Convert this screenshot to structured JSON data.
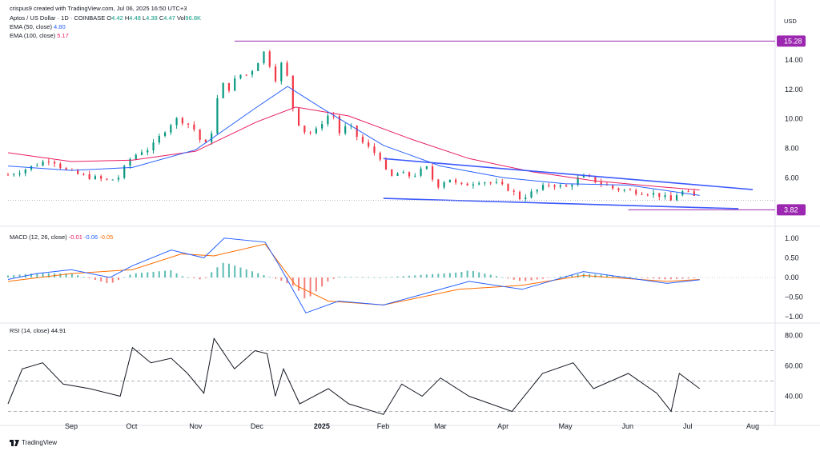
{
  "header": {
    "creator": "crispus9 created with TradingView.com, Jul 06, 2025 16:50 UTC+3",
    "symbol": "Aptos / US Dollar · 1D · COINBASE",
    "o_label": "O",
    "o": "4.42",
    "h_label": "H",
    "h": "4.48",
    "l_label": "L",
    "l": "4.38",
    "c_label": "C",
    "c": "4.47",
    "vol_label": "Vol",
    "vol": "96.8K",
    "ema50_label": "EMA (50, close)",
    "ema50": "4.80",
    "ema100_label": "EMA (100, close)",
    "ema100": "5.17",
    "currency": "USD"
  },
  "macd": {
    "label": "MACD (12, 26, close)",
    "hist": "-0.01",
    "macd": "-0.06",
    "signal": "-0.05"
  },
  "rsi": {
    "label": "RSI (14, close)",
    "value": "44.91"
  },
  "branding": "TradingView",
  "colors": {
    "up": "#089981",
    "down": "#f23645",
    "ema50": "#2962ff",
    "ema100": "#e91e63",
    "trend": "#3d5afe",
    "level": "#9c27b0",
    "signal": "#ff6d00",
    "rsi": "#131722"
  },
  "chart_data": [
    {
      "type": "candlestick",
      "title": "Aptos / US Dollar · 1D · COINBASE",
      "ylabel": "USD",
      "ylim": [
        3.3,
        15.9
      ],
      "y_ticks": [
        "14.00",
        "12.00",
        "10.00",
        "8.00",
        "6.00"
      ],
      "x_ticks": [
        "Sep",
        "Oct",
        "Nov",
        "Dec",
        "2025",
        "Feb",
        "Mar",
        "Apr",
        "May",
        "Jun",
        "Jul",
        "Aug"
      ],
      "x_tick_dates": [
        "2024-09-01",
        "2024-10-01",
        "2024-11-01",
        "2024-12-01",
        "2025-01-01",
        "2025-02-01",
        "2025-03-01",
        "2025-04-01",
        "2025-05-01",
        "2025-06-01",
        "2025-07-01",
        "2025-08-01"
      ],
      "x_range": [
        "2024-08-01",
        "2025-08-12"
      ],
      "price_points": [
        [
          "2024-08-01",
          6.2
        ],
        [
          "2024-08-08",
          6.5
        ],
        [
          "2024-08-15",
          6.9
        ],
        [
          "2024-08-22",
          7.3
        ],
        [
          "2024-08-29",
          6.5
        ],
        [
          "2024-09-05",
          6.2
        ],
        [
          "2024-09-12",
          6.0
        ],
        [
          "2024-09-19",
          5.8
        ],
        [
          "2024-09-24",
          6.0
        ],
        [
          "2024-09-30",
          7.3
        ],
        [
          "2024-10-05",
          7.8
        ],
        [
          "2024-10-10",
          8.0
        ],
        [
          "2024-10-16",
          9.1
        ],
        [
          "2024-10-22",
          10.0
        ],
        [
          "2024-10-27",
          9.8
        ],
        [
          "2024-11-01",
          9.2
        ],
        [
          "2024-11-05",
          8.0
        ],
        [
          "2024-11-09",
          9.2
        ],
        [
          "2024-11-13",
          12.5
        ],
        [
          "2024-11-17",
          12.0
        ],
        [
          "2024-11-22",
          13.0
        ],
        [
          "2024-11-27",
          13.0
        ],
        [
          "2024-12-03",
          14.2
        ],
        [
          "2024-12-06",
          14.9
        ],
        [
          "2024-12-09",
          12.0
        ],
        [
          "2024-12-12",
          14.0
        ],
        [
          "2024-12-16",
          12.8
        ],
        [
          "2024-12-19",
          10.5
        ],
        [
          "2024-12-23",
          9.2
        ],
        [
          "2024-12-29",
          9.0
        ],
        [
          "2025-01-03",
          10.0
        ],
        [
          "2025-01-07",
          10.5
        ],
        [
          "2025-01-10",
          9.0
        ],
        [
          "2025-01-15",
          9.6
        ],
        [
          "2025-01-20",
          8.6
        ],
        [
          "2025-01-25",
          8.0
        ],
        [
          "2025-02-01",
          7.2
        ],
        [
          "2025-02-03",
          5.9
        ],
        [
          "2025-02-08",
          6.3
        ],
        [
          "2025-02-15",
          6.1
        ],
        [
          "2025-02-22",
          6.7
        ],
        [
          "2025-02-27",
          5.4
        ],
        [
          "2025-03-05",
          6.0
        ],
        [
          "2025-03-10",
          5.4
        ],
        [
          "2025-03-20",
          5.8
        ],
        [
          "2025-03-28",
          5.6
        ],
        [
          "2025-04-04",
          5.2
        ],
        [
          "2025-04-09",
          4.6
        ],
        [
          "2025-04-15",
          5.0
        ],
        [
          "2025-04-24",
          5.6
        ],
        [
          "2025-05-01",
          5.3
        ],
        [
          "2025-05-09",
          6.1
        ],
        [
          "2025-05-14",
          5.9
        ],
        [
          "2025-05-24",
          5.3
        ],
        [
          "2025-06-02",
          5.1
        ],
        [
          "2025-06-10",
          5.0
        ],
        [
          "2025-06-17",
          4.8
        ],
        [
          "2025-06-22",
          4.4
        ],
        [
          "2025-06-26",
          5.1
        ],
        [
          "2025-07-01",
          4.9
        ],
        [
          "2025-07-06",
          4.47
        ]
      ],
      "ema50_points": [
        [
          "2024-08-01",
          6.8
        ],
        [
          "2024-09-01",
          6.5
        ],
        [
          "2024-10-01",
          6.7
        ],
        [
          "2024-11-01",
          7.9
        ],
        [
          "2024-12-01",
          10.8
        ],
        [
          "2024-12-16",
          12.2
        ],
        [
          "2025-01-01",
          10.8
        ],
        [
          "2025-02-01",
          8.2
        ],
        [
          "2025-03-01",
          6.8
        ],
        [
          "2025-04-01",
          6.0
        ],
        [
          "2025-05-01",
          5.6
        ],
        [
          "2025-06-01",
          5.5
        ],
        [
          "2025-07-06",
          4.8
        ]
      ],
      "ema100_points": [
        [
          "2024-08-01",
          7.7
        ],
        [
          "2024-09-01",
          7.1
        ],
        [
          "2024-10-01",
          7.2
        ],
        [
          "2024-11-01",
          7.8
        ],
        [
          "2024-12-01",
          9.8
        ],
        [
          "2024-12-20",
          10.8
        ],
        [
          "2025-01-15",
          10.2
        ],
        [
          "2025-02-15",
          8.6
        ],
        [
          "2025-03-15",
          7.3
        ],
        [
          "2025-04-15",
          6.4
        ],
        [
          "2025-05-15",
          5.8
        ],
        [
          "2025-06-15",
          5.4
        ],
        [
          "2025-07-06",
          5.17
        ]
      ],
      "trendlines": [
        {
          "from": [
            "2025-02-01",
            7.3
          ],
          "to": [
            "2025-08-01",
            5.2
          ]
        },
        {
          "from": [
            "2025-02-01",
            4.6
          ],
          "to": [
            "2025-07-25",
            3.9
          ]
        }
      ],
      "horizontal_levels": [
        15.28,
        3.82
      ],
      "price_tags": [
        "15.28",
        "3.82"
      ]
    },
    {
      "type": "line",
      "title": "MACD (12, 26, close)",
      "ylim": [
        -1.2,
        1.2
      ],
      "y_ticks": [
        "1.00",
        "0.50",
        "0.00",
        "−0.50",
        "−1.00"
      ],
      "macd_points": [
        [
          "2024-08-01",
          -0.05
        ],
        [
          "2024-08-15",
          0.1
        ],
        [
          "2024-09-01",
          0.2
        ],
        [
          "2024-09-20",
          0.0
        ],
        [
          "2024-10-01",
          0.3
        ],
        [
          "2024-10-20",
          0.7
        ],
        [
          "2024-11-05",
          0.5
        ],
        [
          "2024-11-15",
          1.0
        ],
        [
          "2024-12-05",
          0.9
        ],
        [
          "2024-12-12",
          0.3
        ],
        [
          "2024-12-25",
          -0.9
        ],
        [
          "2025-01-10",
          -0.6
        ],
        [
          "2025-02-01",
          -0.7
        ],
        [
          "2025-02-15",
          -0.5
        ],
        [
          "2025-03-15",
          -0.1
        ],
        [
          "2025-04-10",
          -0.3
        ],
        [
          "2025-05-10",
          0.15
        ],
        [
          "2025-06-20",
          -0.15
        ],
        [
          "2025-07-06",
          -0.06
        ]
      ],
      "signal_points": [
        [
          "2024-08-01",
          -0.1
        ],
        [
          "2024-09-01",
          0.1
        ],
        [
          "2024-10-01",
          0.2
        ],
        [
          "2024-10-25",
          0.6
        ],
        [
          "2024-11-10",
          0.55
        ],
        [
          "2024-12-05",
          0.85
        ],
        [
          "2024-12-20",
          -0.2
        ],
        [
          "2025-01-05",
          -0.6
        ],
        [
          "2025-02-01",
          -0.7
        ],
        [
          "2025-03-10",
          -0.3
        ],
        [
          "2025-04-10",
          -0.2
        ],
        [
          "2025-05-10",
          0.05
        ],
        [
          "2025-06-20",
          -0.1
        ],
        [
          "2025-07-06",
          -0.05
        ]
      ]
    },
    {
      "type": "line",
      "title": "RSI (14, close)",
      "ylim": [
        25,
        85
      ],
      "y_ticks": [
        "80.00",
        "60.00",
        "40.00"
      ],
      "bands": [
        70,
        50,
        30
      ],
      "rsi_points": [
        [
          "2024-08-01",
          35
        ],
        [
          "2024-08-08",
          58
        ],
        [
          "2024-08-18",
          62
        ],
        [
          "2024-08-28",
          48
        ],
        [
          "2024-09-10",
          45
        ],
        [
          "2024-09-25",
          40
        ],
        [
          "2024-10-01",
          72
        ],
        [
          "2024-10-10",
          62
        ],
        [
          "2024-10-20",
          65
        ],
        [
          "2024-10-28",
          55
        ],
        [
          "2024-11-05",
          42
        ],
        [
          "2024-11-10",
          78
        ],
        [
          "2024-11-20",
          58
        ],
        [
          "2024-11-30",
          70
        ],
        [
          "2024-12-06",
          68
        ],
        [
          "2024-12-10",
          40
        ],
        [
          "2024-12-14",
          58
        ],
        [
          "2024-12-22",
          35
        ],
        [
          "2025-01-05",
          45
        ],
        [
          "2025-01-15",
          35
        ],
        [
          "2025-02-01",
          28
        ],
        [
          "2025-02-10",
          48
        ],
        [
          "2025-02-20",
          40
        ],
        [
          "2025-03-01",
          52
        ],
        [
          "2025-03-15",
          40
        ],
        [
          "2025-04-05",
          30
        ],
        [
          "2025-04-20",
          55
        ],
        [
          "2025-05-05",
          62
        ],
        [
          "2025-05-15",
          45
        ],
        [
          "2025-06-01",
          55
        ],
        [
          "2025-06-15",
          42
        ],
        [
          "2025-06-22",
          30
        ],
        [
          "2025-06-26",
          55
        ],
        [
          "2025-07-06",
          45
        ]
      ]
    }
  ]
}
